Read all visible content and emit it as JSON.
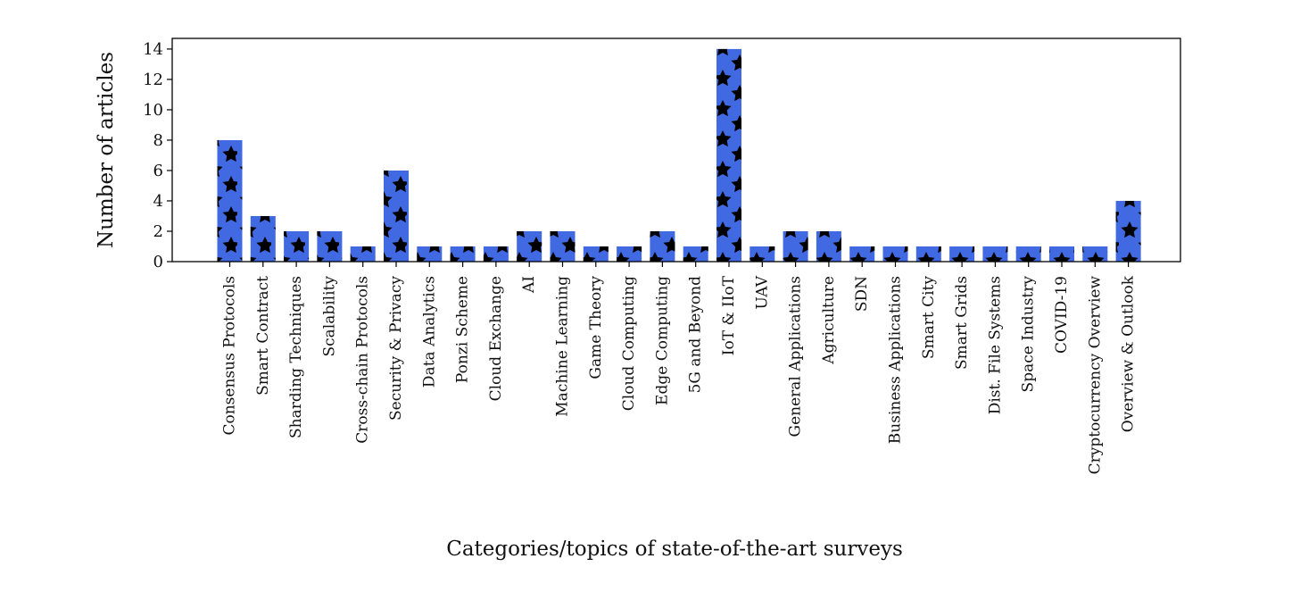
{
  "chart_data": {
    "type": "bar",
    "title": "",
    "xlabel": "Categories/topics of state-of-the-art surveys",
    "ylabel": "Number of articles",
    "ylim": [
      0,
      14.7
    ],
    "yticks": [
      0,
      2,
      4,
      6,
      8,
      10,
      12,
      14
    ],
    "grid": false,
    "bar_color": "#4169e1",
    "hatch": "star",
    "hatch_color": "#000000",
    "categories": [
      "Consensus Protocols",
      "Smart Contract",
      "Sharding Techniques",
      "Scalability",
      "Cross-chain Protocols",
      "Security & Privacy",
      "Data Analytics",
      "Ponzi Scheme",
      "Cloud Exchange",
      "AI",
      "Machine Learning",
      "Game Theory",
      "Cloud Computing",
      "Edge Computing",
      "5G and Beyond",
      "IoT & IIoT",
      "UAV",
      "General Applications",
      "Agriculture",
      "SDN",
      "Business Applications",
      "Smart City",
      "Smart Grids",
      "Dist. File Systems",
      "Space Industry",
      "COVID-19",
      "Cryptocurrency Overview",
      "Overview & Outlook"
    ],
    "values": [
      8,
      3,
      2,
      2,
      1,
      6,
      1,
      1,
      1,
      2,
      2,
      1,
      1,
      2,
      1,
      14,
      1,
      2,
      2,
      1,
      1,
      1,
      1,
      1,
      1,
      1,
      1,
      4
    ]
  }
}
